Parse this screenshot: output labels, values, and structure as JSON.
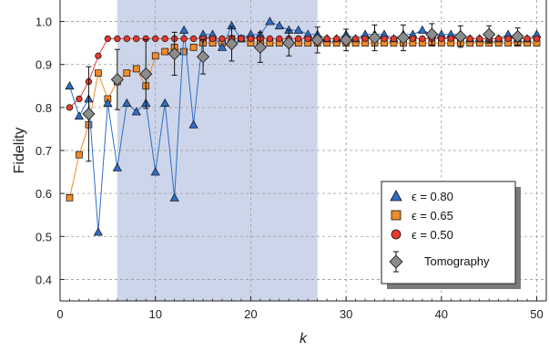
{
  "chart_data": {
    "type": "line",
    "xlabel": "k",
    "ylabel": "Fidelity",
    "xlim": [
      0,
      51
    ],
    "ylim": [
      0.35,
      1.05
    ],
    "xticks": [
      0,
      10,
      20,
      30,
      40,
      50
    ],
    "yticks": [
      0.4,
      0.5,
      0.6,
      0.7,
      0.8,
      0.9,
      1.0
    ],
    "grid": true,
    "shaded_region": [
      6,
      27
    ],
    "legend_position": "bottom-right",
    "series": [
      {
        "name": "ϵ = 0.80",
        "marker": "triangle",
        "color": "#2f6ec4",
        "x": [
          1,
          2,
          3,
          4,
          5,
          6,
          7,
          8,
          9,
          10,
          11,
          12,
          13,
          14,
          15,
          16,
          17,
          18,
          19,
          20,
          21,
          22,
          23,
          24,
          25,
          26,
          27,
          28,
          29,
          30,
          31,
          32,
          33,
          34,
          35,
          36,
          37,
          38,
          39,
          40,
          41,
          42,
          43,
          44,
          45,
          46,
          47,
          48,
          49,
          50
        ],
        "y": [
          0.85,
          0.78,
          0.82,
          0.51,
          0.81,
          0.66,
          0.81,
          0.79,
          0.81,
          0.65,
          0.81,
          0.59,
          0.98,
          0.76,
          0.97,
          0.97,
          0.94,
          0.99,
          0.96,
          0.97,
          0.97,
          1.0,
          0.99,
          0.98,
          0.98,
          0.97,
          0.97,
          0.96,
          0.96,
          0.97,
          0.96,
          0.97,
          0.97,
          0.97,
          0.96,
          0.97,
          0.97,
          0.98,
          0.97,
          0.97,
          0.97,
          0.97,
          0.96,
          0.96,
          0.96,
          0.96,
          0.97,
          0.96,
          0.96,
          0.97
        ]
      },
      {
        "name": "ϵ = 0.65",
        "marker": "square",
        "color": "#f08a2c",
        "x": [
          1,
          2,
          3,
          4,
          5,
          6,
          7,
          8,
          9,
          10,
          11,
          12,
          13,
          14,
          15,
          16,
          17,
          18,
          19,
          20,
          21,
          22,
          23,
          24,
          25,
          26,
          27,
          28,
          29,
          30,
          31,
          32,
          33,
          34,
          35,
          36,
          37,
          38,
          39,
          40,
          41,
          42,
          43,
          44,
          45,
          46,
          47,
          48,
          49,
          50
        ],
        "y": [
          0.59,
          0.69,
          0.76,
          0.88,
          0.82,
          0.86,
          0.88,
          0.89,
          0.85,
          0.92,
          0.93,
          0.94,
          0.93,
          0.94,
          0.95,
          0.95,
          0.95,
          0.96,
          0.96,
          0.95,
          0.95,
          0.95,
          0.95,
          0.95,
          0.95,
          0.95,
          0.95,
          0.95,
          0.95,
          0.95,
          0.95,
          0.95,
          0.95,
          0.95,
          0.95,
          0.95,
          0.95,
          0.95,
          0.95,
          0.95,
          0.95,
          0.95,
          0.95,
          0.95,
          0.95,
          0.95,
          0.95,
          0.95,
          0.95,
          0.95
        ]
      },
      {
        "name": "ϵ = 0.50",
        "marker": "circle",
        "color": "#e53b2e",
        "x": [
          1,
          2,
          3,
          4,
          5,
          6,
          7,
          8,
          9,
          10,
          11,
          12,
          13,
          14,
          15,
          16,
          17,
          18,
          19,
          20,
          21,
          22,
          23,
          24,
          25,
          26,
          27,
          28,
          29,
          30,
          31,
          32,
          33,
          34,
          35,
          36,
          37,
          38,
          39,
          40,
          41,
          42,
          43,
          44,
          45,
          46,
          47,
          48,
          49,
          50
        ],
        "y": [
          0.8,
          0.82,
          0.86,
          0.92,
          0.96,
          0.96,
          0.96,
          0.96,
          0.96,
          0.96,
          0.96,
          0.96,
          0.96,
          0.96,
          0.96,
          0.96,
          0.96,
          0.96,
          0.96,
          0.96,
          0.96,
          0.96,
          0.96,
          0.96,
          0.96,
          0.96,
          0.96,
          0.96,
          0.96,
          0.96,
          0.96,
          0.96,
          0.96,
          0.96,
          0.96,
          0.96,
          0.96,
          0.96,
          0.96,
          0.96,
          0.96,
          0.96,
          0.96,
          0.96,
          0.96,
          0.96,
          0.96,
          0.96,
          0.96,
          0.96
        ]
      },
      {
        "name": "Tomography",
        "marker": "diamond-errorbar",
        "color": "#8c8c8c",
        "x": [
          3,
          6,
          9,
          12,
          15,
          18,
          21,
          24,
          27,
          30,
          33,
          36,
          39,
          42,
          45,
          48
        ],
        "y": [
          0.785,
          0.865,
          0.878,
          0.925,
          0.918,
          0.948,
          0.94,
          0.95,
          0.957,
          0.957,
          0.962,
          0.962,
          0.97,
          0.965,
          0.97,
          0.965
        ],
        "err": [
          0.11,
          0.07,
          0.08,
          0.05,
          0.04,
          0.04,
          0.035,
          0.03,
          0.03,
          0.025,
          0.03,
          0.03,
          0.025,
          0.025,
          0.02,
          0.02
        ]
      }
    ]
  },
  "legend": {
    "items": [
      {
        "label": "ϵ = 0.80"
      },
      {
        "label": "ϵ = 0.65"
      },
      {
        "label": "ϵ = 0.50"
      },
      {
        "label": "Tomography"
      }
    ]
  }
}
